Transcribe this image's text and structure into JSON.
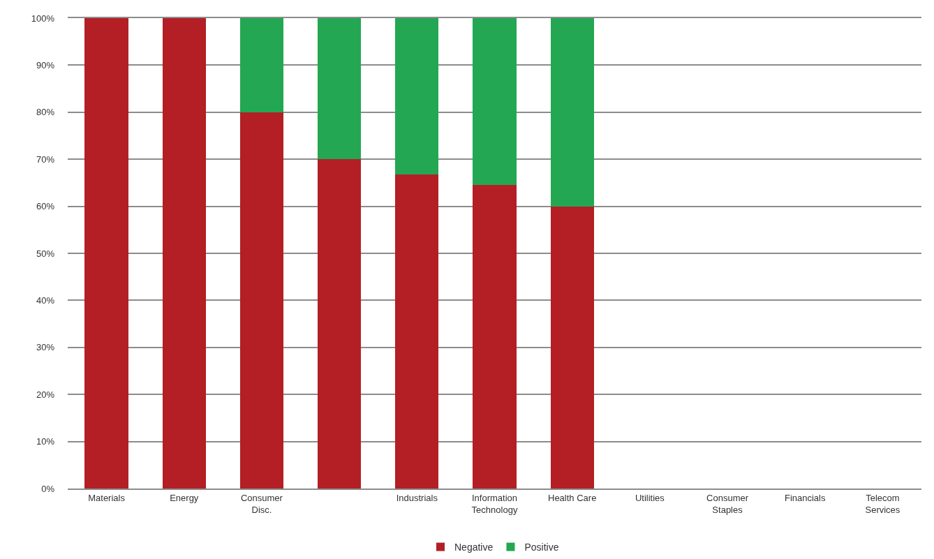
{
  "chart_data": {
    "type": "bar",
    "stacked": true,
    "categories": [
      "Materials",
      "Energy",
      "Consumer Disc.",
      null,
      "Industrials",
      "Information Technology",
      "Health Care",
      "Utilities",
      "Consumer Staples",
      "Financials",
      "Telecom Services"
    ],
    "series": [
      {
        "name": "Negative",
        "color": "#b31f24",
        "values": [
          100,
          100,
          80,
          70,
          66.7,
          64.5,
          60,
          null,
          null,
          null,
          null
        ]
      },
      {
        "name": "Positive",
        "color": "#23a752",
        "values": [
          null,
          null,
          20,
          30,
          33.3,
          35.5,
          40,
          null,
          null,
          null,
          null
        ]
      }
    ],
    "ylim": [
      0,
      100
    ],
    "yticks": [
      {
        "value": 0,
        "label": "0%"
      },
      {
        "value": 10,
        "label": "10%"
      },
      {
        "value": 20,
        "label": "20%"
      },
      {
        "value": 30,
        "label": "30%"
      },
      {
        "value": 40,
        "label": "40%"
      },
      {
        "value": 50,
        "label": "50%"
      },
      {
        "value": 60,
        "label": "60%"
      },
      {
        "value": 70,
        "label": "70%"
      },
      {
        "value": 80,
        "label": "80%"
      },
      {
        "value": 90,
        "label": "90%"
      },
      {
        "value": 100,
        "label": "100%"
      }
    ],
    "grid": "y",
    "legend": "bottom"
  }
}
